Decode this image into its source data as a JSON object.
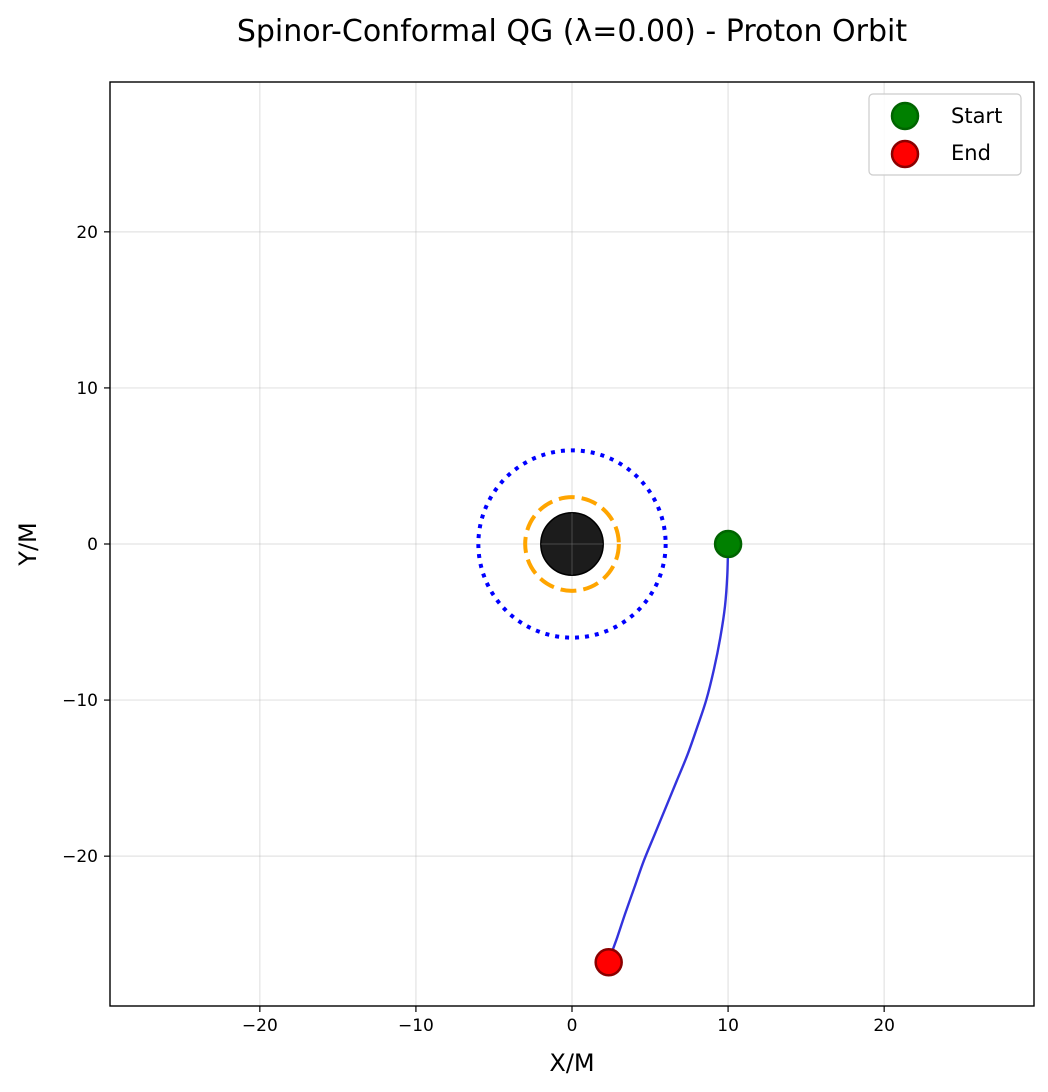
{
  "chart_data": {
    "type": "line",
    "title": "Spinor-Conformal QG (λ=0.00) - Proton Orbit",
    "xlabel": "X/M",
    "ylabel": "Y/M",
    "xlim": [
      -29.6,
      29.6
    ],
    "ylim": [
      -29.6,
      29.6
    ],
    "xticks": [
      -20,
      -10,
      0,
      10,
      20
    ],
    "xtick_labels": [
      "−20",
      "−10",
      "0",
      "10",
      "20"
    ],
    "yticks": [
      -20,
      -10,
      0,
      10,
      20
    ],
    "ytick_labels": [
      "−20",
      "−10",
      "0",
      "10",
      "20"
    ],
    "grid": true,
    "legend_position": "top-right",
    "colors": {
      "trajectory": "#3333dd",
      "start": "#008000",
      "start_edge": "#006400",
      "end": "#ff0000",
      "end_edge": "#8b0000",
      "black_hole": "#1c1c1c",
      "photon_sphere": "#ffa500",
      "isco": "#0000ff"
    },
    "black_hole": {
      "center": [
        0,
        0
      ],
      "radius": 2
    },
    "photon_sphere": {
      "center": [
        0,
        0
      ],
      "radius": 3,
      "style": "dashed"
    },
    "isco": {
      "center": [
        0,
        0
      ],
      "radius": 6,
      "style": "dotted"
    },
    "trajectory": {
      "x": [
        10.0,
        9.95,
        9.8,
        9.5,
        9.1,
        8.6,
        8.0,
        7.4,
        6.7,
        6.0,
        5.3,
        4.6,
        4.0,
        3.4,
        2.9,
        2.5,
        2.35
      ],
      "y": [
        0.0,
        -2.0,
        -4.0,
        -6.0,
        -8.0,
        -10.0,
        -11.8,
        -13.5,
        -15.2,
        -16.9,
        -18.6,
        -20.3,
        -22.0,
        -23.7,
        -25.2,
        -26.3,
        -26.8
      ]
    },
    "start": {
      "name": "Start",
      "x": 10.0,
      "y": 0.0
    },
    "end": {
      "name": "End",
      "x": 2.35,
      "y": -26.8
    },
    "legend": [
      "Start",
      "End"
    ]
  }
}
